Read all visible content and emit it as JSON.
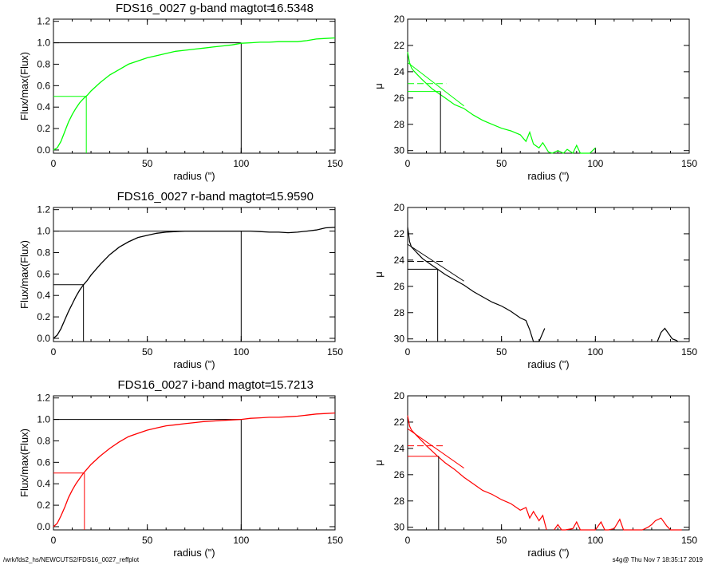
{
  "footer": {
    "path": "/wrk/fds2_hs/NEWCUTS2/FDS16_0027_reffplot",
    "stamp": "s4g@  Thu Nov  7 18:35:17 2019"
  },
  "chart_data": [
    {
      "type": "line",
      "panel": "growth-curve",
      "band": "g",
      "title": "FDS16_0027 g-band  magtot=",
      "magtot": "16.5348",
      "xlabel": "radius (\")",
      "ylabel": "Flux/max(Flux)",
      "xlim": [
        0,
        150
      ],
      "ylim": [
        -0.03,
        1.22
      ],
      "xticks": [
        "0",
        "50",
        "100",
        "150"
      ],
      "yticks": [
        "0.0",
        "0.2",
        "0.4",
        "0.6",
        "0.8",
        "1.0",
        "1.2"
      ],
      "color": "#00ff00",
      "x": [
        0,
        2,
        4,
        6,
        8,
        10,
        12,
        14,
        16,
        18,
        20,
        25,
        30,
        35,
        40,
        45,
        50,
        55,
        60,
        65,
        70,
        75,
        80,
        85,
        90,
        95,
        100,
        105,
        110,
        115,
        120,
        125,
        130,
        135,
        140,
        145,
        150
      ],
      "y": [
        0.0,
        0.02,
        0.08,
        0.17,
        0.26,
        0.33,
        0.39,
        0.44,
        0.48,
        0.51,
        0.55,
        0.63,
        0.7,
        0.75,
        0.8,
        0.83,
        0.86,
        0.88,
        0.9,
        0.92,
        0.93,
        0.94,
        0.95,
        0.96,
        0.97,
        0.98,
        0.995,
        1.0,
        1.005,
        1.005,
        1.01,
        1.01,
        1.01,
        1.02,
        1.035,
        1.04,
        1.045
      ],
      "reff": 17.5,
      "half": 0.5,
      "rtot": 100,
      "ftot": 1.0
    },
    {
      "type": "line",
      "panel": "surface-brightness",
      "band": "g",
      "xlabel": "radius (\")",
      "ylabel": "μ",
      "xlim": [
        0,
        150
      ],
      "ylim": [
        30.2,
        20
      ],
      "xticks": [
        "0",
        "50",
        "100",
        "150"
      ],
      "yticks": [
        "20",
        "22",
        "24",
        "26",
        "28",
        "30"
      ],
      "color": "#00ff00",
      "x": [
        0,
        0.5,
        1,
        2,
        3,
        5,
        7,
        10,
        13,
        16,
        20,
        25,
        30,
        35,
        40,
        45,
        50,
        55,
        60,
        63,
        65,
        67,
        70,
        72,
        75,
        77,
        80,
        83,
        85,
        88,
        90,
        92,
        95,
        97,
        100
      ],
      "y": [
        22.5,
        22.9,
        23.3,
        23.7,
        23.9,
        24.2,
        24.5,
        24.9,
        25.3,
        25.6,
        26.0,
        26.5,
        26.8,
        27.3,
        27.7,
        28.0,
        28.3,
        28.5,
        28.8,
        29.3,
        28.6,
        29.5,
        29.8,
        29.4,
        30.1,
        30.2,
        30.0,
        30.2,
        29.9,
        30.2,
        29.6,
        30.2,
        30.2,
        30.2,
        29.8
      ],
      "fit": {
        "x0": 0,
        "y0": 23.3,
        "x1": 30,
        "y1": 26.6
      },
      "dashed_y": 24.9,
      "reff": 17.5,
      "mu_eff": 25.5
    },
    {
      "type": "line",
      "panel": "growth-curve",
      "band": "r",
      "title": "FDS16_0027 r-band  magtot=",
      "magtot": "15.9590",
      "xlabel": "radius (\")",
      "ylabel": "Flux/max(Flux)",
      "xlim": [
        0,
        150
      ],
      "ylim": [
        -0.03,
        1.22
      ],
      "xticks": [
        "0",
        "50",
        "100",
        "150"
      ],
      "yticks": [
        "0.0",
        "0.2",
        "0.4",
        "0.6",
        "0.8",
        "1.0",
        "1.2"
      ],
      "color": "#000000",
      "x": [
        0,
        2,
        4,
        6,
        8,
        10,
        12,
        14,
        16,
        18,
        20,
        25,
        30,
        35,
        40,
        45,
        50,
        55,
        60,
        65,
        70,
        75,
        80,
        85,
        90,
        95,
        100,
        105,
        110,
        115,
        120,
        125,
        130,
        135,
        140,
        145,
        150
      ],
      "y": [
        0.0,
        0.03,
        0.09,
        0.17,
        0.25,
        0.32,
        0.39,
        0.45,
        0.5,
        0.54,
        0.59,
        0.69,
        0.78,
        0.85,
        0.9,
        0.94,
        0.96,
        0.98,
        0.99,
        0.995,
        1.0,
        1.0,
        1.0,
        1.0,
        1.0,
        1.0,
        1.0,
        1.0,
        0.995,
        0.99,
        0.99,
        0.985,
        0.99,
        1.0,
        1.01,
        1.03,
        1.035
      ],
      "reff": 16,
      "half": 0.5,
      "rtot": 100,
      "ftot": 1.0
    },
    {
      "type": "line",
      "panel": "surface-brightness",
      "band": "r",
      "xlabel": "radius (\")",
      "ylabel": "μ",
      "xlim": [
        0,
        150
      ],
      "ylim": [
        30.2,
        20
      ],
      "xticks": [
        "0",
        "50",
        "100",
        "150"
      ],
      "yticks": [
        "20",
        "22",
        "24",
        "26",
        "28",
        "30"
      ],
      "color": "#000000",
      "x": [
        0,
        0.5,
        1,
        2,
        4,
        6,
        8,
        10,
        13,
        16,
        20,
        25,
        30,
        35,
        40,
        45,
        50,
        55,
        60,
        63,
        65,
        67,
        70,
        73
      ],
      "y": [
        21.5,
        22.0,
        22.6,
        23.0,
        23.3,
        23.6,
        23.9,
        24.1,
        24.4,
        24.7,
        25.1,
        25.5,
        25.9,
        26.4,
        26.8,
        27.2,
        27.5,
        27.9,
        28.4,
        28.6,
        29.3,
        30.2,
        30.2,
        29.2
      ],
      "x2": [
        133,
        135,
        137,
        139,
        141,
        143,
        144
      ],
      "y2": [
        30.2,
        29.5,
        29.2,
        29.6,
        30.0,
        30.1,
        30.2
      ],
      "fit": {
        "x0": 0,
        "y0": 22.8,
        "x1": 30,
        "y1": 25.6
      },
      "dashed_y": 24.1,
      "reff": 16,
      "mu_eff": 24.7
    },
    {
      "type": "line",
      "panel": "growth-curve",
      "band": "i",
      "title": "FDS16_0027 i-band  magtot=",
      "magtot": "15.7213",
      "xlabel": "radius (\")",
      "ylabel": "Flux/max(Flux)",
      "xlim": [
        0,
        150
      ],
      "ylim": [
        -0.03,
        1.22
      ],
      "xticks": [
        "0",
        "50",
        "100",
        "150"
      ],
      "yticks": [
        "0.0",
        "0.2",
        "0.4",
        "0.6",
        "0.8",
        "1.0",
        "1.2"
      ],
      "color": "#ff0000",
      "x": [
        0,
        2,
        4,
        6,
        8,
        10,
        12,
        14,
        16,
        18,
        20,
        25,
        30,
        35,
        40,
        45,
        50,
        55,
        60,
        65,
        70,
        75,
        80,
        85,
        90,
        95,
        100,
        105,
        110,
        115,
        120,
        125,
        130,
        135,
        140,
        145,
        150
      ],
      "y": [
        0.0,
        0.03,
        0.1,
        0.18,
        0.27,
        0.34,
        0.4,
        0.45,
        0.5,
        0.54,
        0.58,
        0.66,
        0.73,
        0.79,
        0.84,
        0.87,
        0.9,
        0.92,
        0.94,
        0.95,
        0.96,
        0.97,
        0.98,
        0.985,
        0.99,
        0.995,
        1.0,
        1.01,
        1.015,
        1.02,
        1.02,
        1.025,
        1.03,
        1.04,
        1.05,
        1.055,
        1.06
      ],
      "reff": 16.5,
      "half": 0.5,
      "rtot": 100,
      "ftot": 1.0
    },
    {
      "type": "line",
      "panel": "surface-brightness",
      "band": "i",
      "xlabel": "radius (\")",
      "ylabel": "μ",
      "xlim": [
        0,
        150
      ],
      "ylim": [
        30.2,
        20
      ],
      "xticks": [
        "0",
        "50",
        "100",
        "150"
      ],
      "yticks": [
        "20",
        "22",
        "24",
        "26",
        "28",
        "30"
      ],
      "color": "#ff0000",
      "x": [
        0,
        0.5,
        1,
        2,
        4,
        6,
        8,
        10,
        13,
        16,
        20,
        25,
        30,
        35,
        40,
        45,
        50,
        55,
        60,
        63,
        65,
        67,
        70,
        72,
        74
      ],
      "y": [
        21.5,
        21.9,
        22.3,
        22.6,
        22.9,
        23.2,
        23.5,
        23.8,
        24.2,
        24.6,
        25.1,
        25.6,
        26.2,
        26.7,
        27.2,
        27.5,
        27.9,
        28.2,
        28.7,
        28.5,
        29.3,
        28.8,
        29.5,
        29.1,
        30.2
      ],
      "x2": [
        78,
        80,
        82,
        84,
        88,
        90,
        92,
        95,
        100,
        103,
        105,
        107,
        110,
        113,
        115,
        117,
        120,
        125,
        128,
        130,
        132,
        135,
        138,
        140,
        142,
        144,
        146
      ],
      "y2": [
        30.2,
        29.8,
        30.2,
        30.2,
        30.1,
        29.6,
        30.2,
        30.2,
        30.2,
        29.6,
        30.2,
        30.2,
        30.1,
        29.4,
        30.2,
        30.2,
        30.2,
        30.2,
        30.0,
        29.8,
        29.5,
        29.3,
        29.9,
        30.2,
        30.2,
        30.2,
        30.2
      ],
      "fit": {
        "x0": 0,
        "y0": 22.5,
        "x1": 30,
        "y1": 25.5
      },
      "dashed_y": 23.8,
      "reff": 16.5,
      "mu_eff": 24.6
    }
  ]
}
